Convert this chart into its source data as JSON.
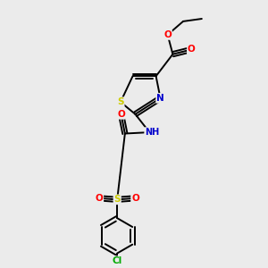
{
  "bg_color": "#ebebeb",
  "atom_colors": {
    "C": "#000000",
    "N": "#0000cc",
    "O": "#ff0000",
    "S": "#cccc00",
    "Cl": "#00aa00",
    "H": "#88aaaa"
  },
  "bond_color": "#000000"
}
